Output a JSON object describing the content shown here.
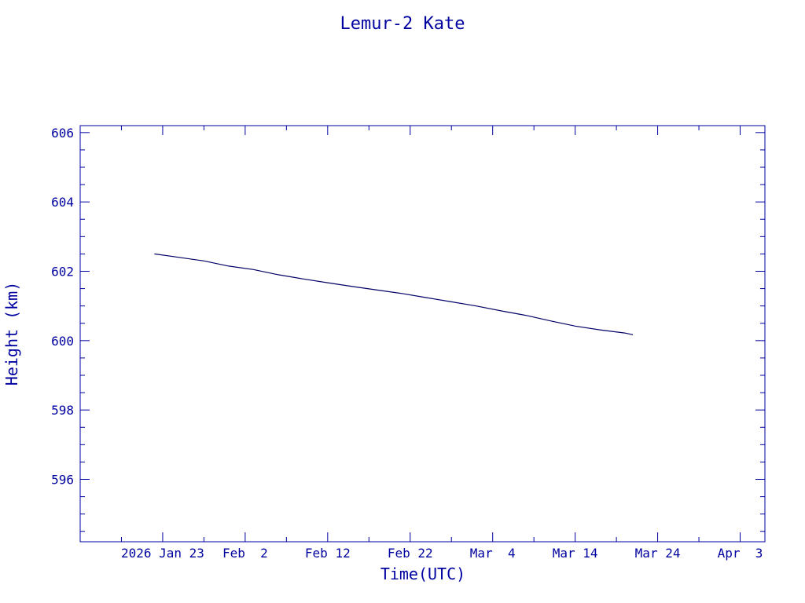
{
  "chart_data": {
    "type": "line",
    "title": "Lemur-2 Kate",
    "xlabel": "Time(UTC)",
    "ylabel": "Height (km)",
    "ylim": [
      594.2,
      606.2
    ],
    "xlim": [
      "2026-01-13",
      "2026-04-06"
    ],
    "y_ticks": [
      596,
      598,
      600,
      602,
      604,
      606
    ],
    "x_ticks": [
      {
        "date": "2026-01-23",
        "label": "2026 Jan 23"
      },
      {
        "date": "2026-02-02",
        "label": "Feb  2"
      },
      {
        "date": "2026-02-12",
        "label": "Feb 12"
      },
      {
        "date": "2026-02-22",
        "label": "Feb 22"
      },
      {
        "date": "2026-03-04",
        "label": "Mar  4"
      },
      {
        "date": "2026-03-14",
        "label": "Mar 14"
      },
      {
        "date": "2026-03-24",
        "label": "Mar 24"
      },
      {
        "date": "2026-04-03",
        "label": "Apr  3"
      }
    ],
    "grid": false,
    "colors": {
      "axes": "#0000a0",
      "line": "#000066"
    },
    "series": [
      {
        "x": [
          "2026-01-22",
          "2026-01-25",
          "2026-01-28",
          "2026-01-31",
          "2026-02-03",
          "2026-02-06",
          "2026-02-09",
          "2026-02-12",
          "2026-02-15",
          "2026-02-18",
          "2026-02-21",
          "2026-02-24",
          "2026-02-27",
          "2026-03-02",
          "2026-03-05",
          "2026-03-08",
          "2026-03-11",
          "2026-03-14",
          "2026-03-17",
          "2026-03-20",
          "2026-03-21"
        ],
        "y": [
          602.5,
          602.4,
          602.3,
          602.15,
          602.05,
          601.9,
          601.78,
          601.67,
          601.56,
          601.46,
          601.36,
          601.24,
          601.12,
          601.0,
          600.86,
          600.73,
          600.57,
          600.42,
          600.31,
          600.22,
          600.17
        ]
      }
    ]
  }
}
